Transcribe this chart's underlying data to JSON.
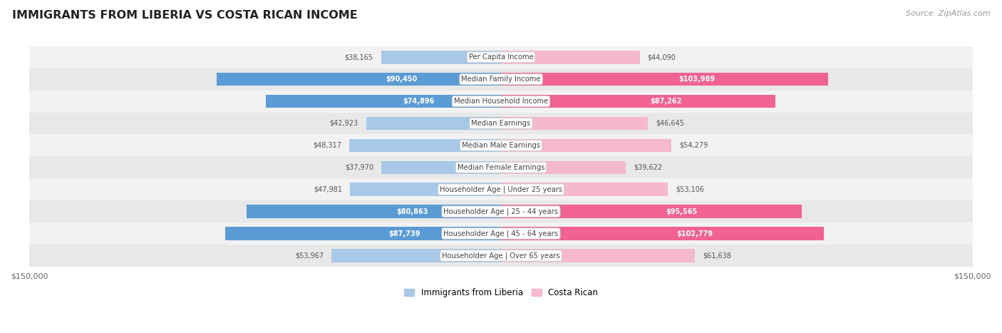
{
  "title": "IMMIGRANTS FROM LIBERIA VS COSTA RICAN INCOME",
  "source": "Source: ZipAtlas.com",
  "categories": [
    "Per Capita Income",
    "Median Family Income",
    "Median Household Income",
    "Median Earnings",
    "Median Male Earnings",
    "Median Female Earnings",
    "Householder Age | Under 25 years",
    "Householder Age | 25 - 44 years",
    "Householder Age | 45 - 64 years",
    "Householder Age | Over 65 years"
  ],
  "liberia_values": [
    38165,
    90450,
    74896,
    42923,
    48317,
    37970,
    47981,
    80863,
    87739,
    53967
  ],
  "costarican_values": [
    44090,
    103989,
    87262,
    46645,
    54279,
    39622,
    53106,
    95565,
    102779,
    61638
  ],
  "liberia_labels": [
    "$38,165",
    "$90,450",
    "$74,896",
    "$42,923",
    "$48,317",
    "$37,970",
    "$47,981",
    "$80,863",
    "$87,739",
    "$53,967"
  ],
  "costarican_labels": [
    "$44,090",
    "$103,989",
    "$87,262",
    "$46,645",
    "$54,279",
    "$39,622",
    "$53,106",
    "$95,565",
    "$102,779",
    "$61,638"
  ],
  "max_value": 150000,
  "liberia_color_light": "#a8c8e8",
  "liberia_color_dark": "#5b9bd5",
  "costarican_color_light": "#f5b8cc",
  "costarican_color_dark": "#f06292",
  "bar_height": 0.6,
  "background_color": "#ffffff",
  "row_colors": [
    "#f2f2f2",
    "#e8e8e8"
  ],
  "liberia_inside_threshold": 60000,
  "costarican_inside_threshold": 80000,
  "legend_liberia": "Immigrants from Liberia",
  "legend_costarican": "Costa Rican"
}
